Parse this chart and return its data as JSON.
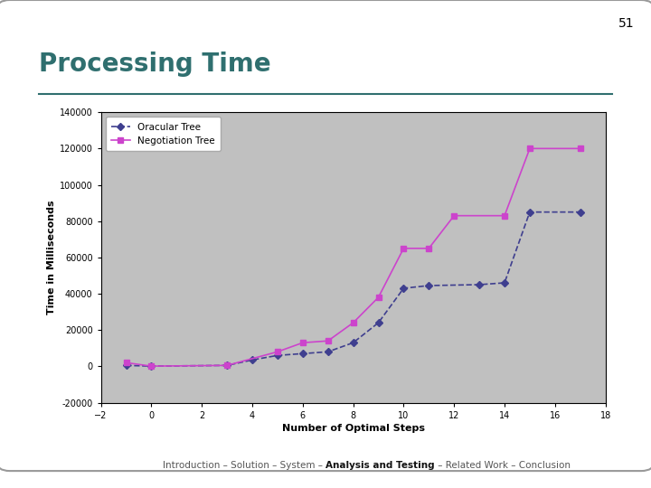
{
  "title": "Processing Time",
  "xlabel": "Number of Optimal Steps",
  "ylabel": "Time in Milliseconds",
  "xlim": [
    -2,
    18
  ],
  "ylim": [
    -20000,
    140000
  ],
  "xticks": [
    -2,
    0,
    2,
    4,
    6,
    8,
    10,
    12,
    14,
    16,
    18
  ],
  "yticks": [
    -20000,
    0,
    20000,
    40000,
    60000,
    80000,
    100000,
    120000,
    140000
  ],
  "oracular_x": [
    -1,
    0,
    3,
    4,
    5,
    6,
    7,
    8,
    9,
    10,
    11,
    13,
    14,
    15,
    17
  ],
  "oracular_y": [
    500,
    100,
    500,
    3500,
    6000,
    7000,
    8000,
    13000,
    24000,
    43000,
    44500,
    45000,
    46000,
    85000,
    85000
  ],
  "negotiation_x": [
    -1,
    0,
    3,
    5,
    6,
    7,
    8,
    9,
    10,
    11,
    12,
    14,
    15,
    17
  ],
  "negotiation_y": [
    2000,
    100,
    500,
    8000,
    13000,
    14000,
    24000,
    38000,
    65000,
    65000,
    83000,
    83000,
    120000,
    120000
  ],
  "oracular_color": "#3f3f8f",
  "negotiation_color": "#cc44cc",
  "plot_bg_color": "#c0c0c0",
  "slide_bg_color": "#ffffff",
  "legend_labels": [
    "Oracular Tree",
    "Negotiation Tree"
  ],
  "title_color": "#2f6f6f",
  "title_fontsize": 20,
  "axis_label_fontsize": 8,
  "tick_fontsize": 7,
  "page_number": "51",
  "footer_pre": "Introduction – Solution – System – ",
  "footer_bold": "Analysis and Testing",
  "footer_post": " – Related Work – Conclusion"
}
